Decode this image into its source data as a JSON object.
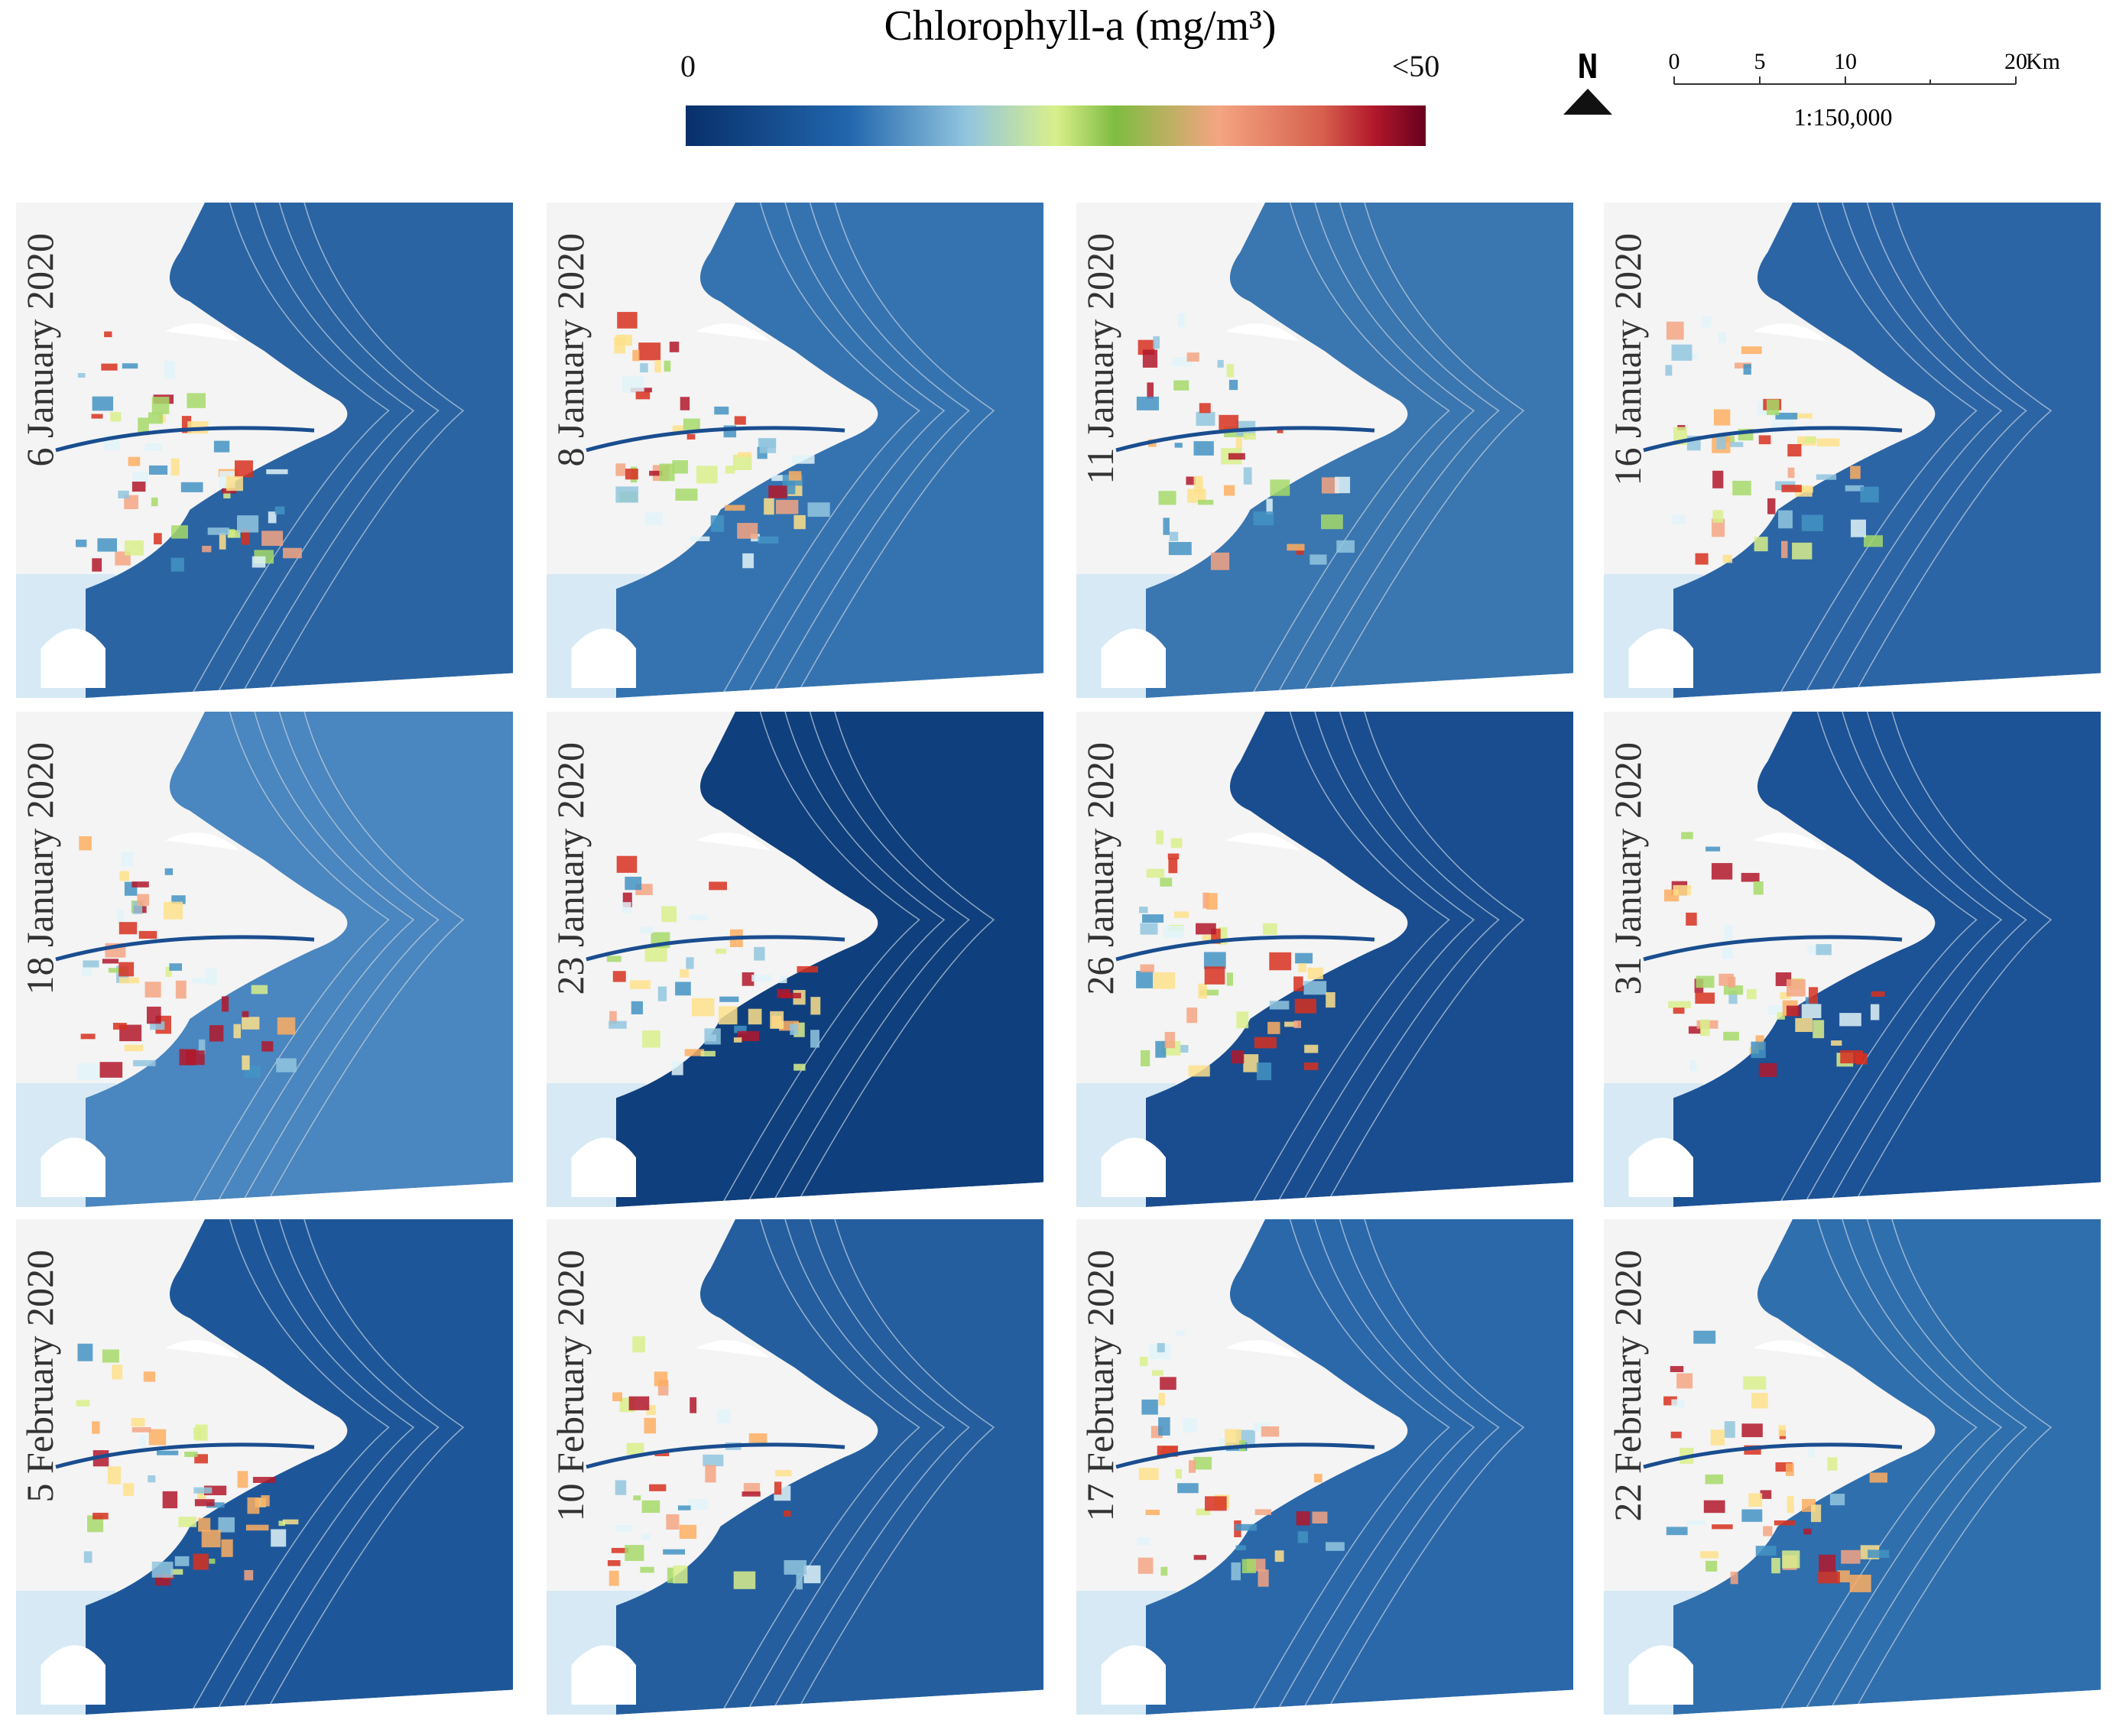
{
  "legend": {
    "title": "Chlorophyll-a (mg/m³)",
    "min_label": "0",
    "max_label": "<50"
  },
  "north_arrow": {
    "label": "N"
  },
  "scale_bar": {
    "ticks": [
      "0",
      "5",
      "10",
      "20"
    ],
    "unit": "Km",
    "ratio": "1:150,000"
  },
  "panels": [
    {
      "date": "6 January 2020"
    },
    {
      "date": "8 January 2020"
    },
    {
      "date": "11 January 2020"
    },
    {
      "date": "16 January 2020"
    },
    {
      "date": "18 January 2020"
    },
    {
      "date": "23 January 2020"
    },
    {
      "date": "26 January 2020"
    },
    {
      "date": "31 January 2020"
    },
    {
      "date": "5 February 2020"
    },
    {
      "date": "10 February 2020"
    },
    {
      "date": "17 February 2020"
    },
    {
      "date": "22 February 2020"
    }
  ]
}
